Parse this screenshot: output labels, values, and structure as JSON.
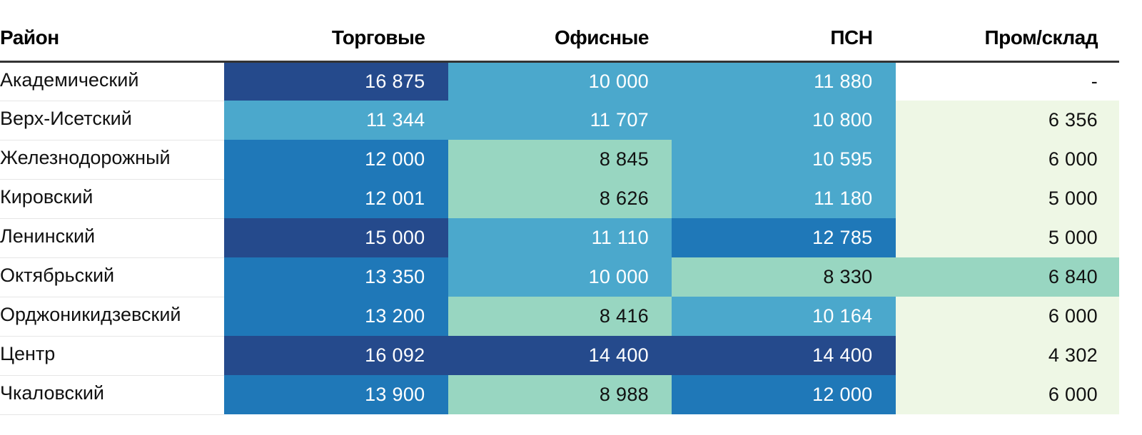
{
  "chart_data": {
    "type": "table",
    "columns": [
      "Район",
      "Торговые",
      "Офисные",
      "ПСН",
      "Пром/склад"
    ],
    "rows": [
      {
        "district": "Академический",
        "values": [
          "16 875",
          "10 000",
          "11 880",
          "-"
        ]
      },
      {
        "district": "Верх-Исетский",
        "values": [
          "11 344",
          "11 707",
          "10 800",
          "6 356"
        ]
      },
      {
        "district": "Железнодорожный",
        "values": [
          "12 000",
          "8 845",
          "10 595",
          "6 000"
        ]
      },
      {
        "district": "Кировский",
        "values": [
          "12 001",
          "8 626",
          "11 180",
          "5 000"
        ]
      },
      {
        "district": "Ленинский",
        "values": [
          "15 000",
          "11 110",
          "12 785",
          "5 000"
        ]
      },
      {
        "district": "Октябрьский",
        "values": [
          "13 350",
          "10 000",
          "8 330",
          "6 840"
        ]
      },
      {
        "district": "Орджоникидзевский",
        "values": [
          "13 200",
          "8 416",
          "10 164",
          "6 000"
        ]
      },
      {
        "district": "Центр",
        "values": [
          "16 092",
          "14 400",
          "14 400",
          "4 302"
        ]
      },
      {
        "district": "Чкаловский",
        "values": [
          "13 900",
          "8 988",
          "12 000",
          "6 000"
        ]
      }
    ],
    "numeric_values": [
      [
        16875,
        10000,
        11880,
        null
      ],
      [
        11344,
        11707,
        10800,
        6356
      ],
      [
        12000,
        8845,
        10595,
        6000
      ],
      [
        12001,
        8626,
        11180,
        5000
      ],
      [
        15000,
        11110,
        12785,
        5000
      ],
      [
        13350,
        10000,
        8330,
        6840
      ],
      [
        13200,
        8416,
        10164,
        6000
      ],
      [
        16092,
        14400,
        14400,
        4302
      ],
      [
        13900,
        8988,
        12000,
        6000
      ]
    ],
    "color_scale": [
      {
        "min": 0,
        "max": 7000,
        "color": "#eef7e5",
        "text": "#111111"
      },
      {
        "min": 6500,
        "max": 7000,
        "color": "#98d6c1",
        "text": "#111111"
      },
      {
        "min": 7000,
        "max": 10000,
        "color": "#98d6c1",
        "text": "#111111"
      },
      {
        "min": 10000,
        "max": 12000,
        "color": "#4ba8cc",
        "text": "#ffffff"
      },
      {
        "min": 12000,
        "max": 14000,
        "color": "#1f78b8",
        "text": "#ffffff"
      },
      {
        "min": 14000,
        "max": 99999,
        "color": "#254a8c",
        "text": "#ffffff"
      }
    ],
    "empty_color": "#ffffff"
  }
}
